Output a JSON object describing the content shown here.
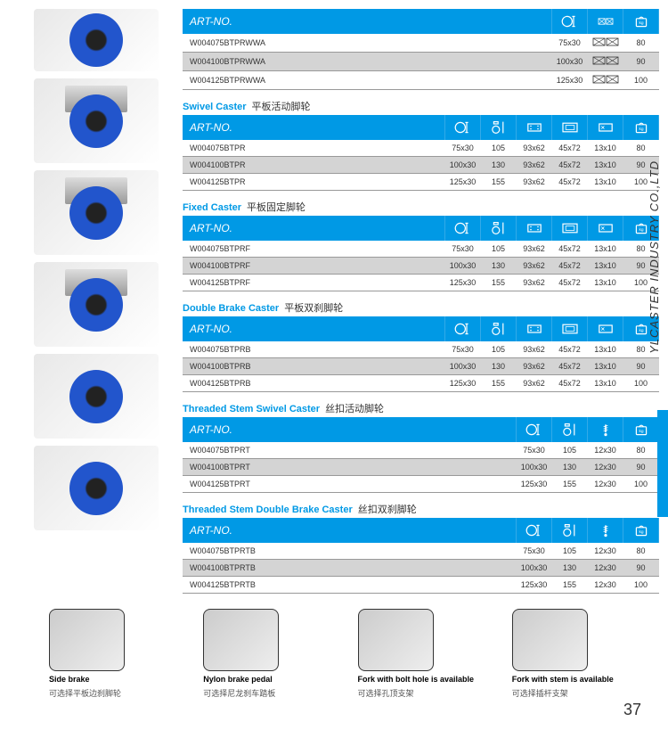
{
  "company": "YLCASTER INDUSTRY CO.,LTD",
  "pageNumber": "37",
  "colors": {
    "primary": "#0099e5",
    "altRow": "#d4d4d4",
    "text": "#333"
  },
  "artNoHeader": "ART-NO.",
  "sections": [
    {
      "title": "",
      "titleCn": "",
      "cols": 4,
      "rows": [
        {
          "art": "W004075BTPRWWA",
          "c1": "75x30",
          "c2": "",
          "c3": "80"
        },
        {
          "art": "W004100BTPRWWA",
          "c1": "100x30",
          "c2": "",
          "c3": "90"
        },
        {
          "art": "W004125BTPRWWA",
          "c1": "125x30",
          "c2": "",
          "c3": "100"
        }
      ]
    },
    {
      "title": "Swivel Caster",
      "titleCn": "平板活动脚轮",
      "cols": 7,
      "rows": [
        {
          "art": "W004075BTPR",
          "c1": "75x30",
          "c2": "105",
          "c3": "93x62",
          "c4": "45x72",
          "c5": "13x10",
          "c6": "80"
        },
        {
          "art": "W004100BTPR",
          "c1": "100x30",
          "c2": "130",
          "c3": "93x62",
          "c4": "45x72",
          "c5": "13x10",
          "c6": "90"
        },
        {
          "art": "W004125BTPR",
          "c1": "125x30",
          "c2": "155",
          "c3": "93x62",
          "c4": "45x72",
          "c5": "13x10",
          "c6": "100"
        }
      ]
    },
    {
      "title": "Fixed Caster",
      "titleCn": "平板固定脚轮",
      "cols": 7,
      "rows": [
        {
          "art": "W004075BTPRF",
          "c1": "75x30",
          "c2": "105",
          "c3": "93x62",
          "c4": "45x72",
          "c5": "13x10",
          "c6": "80"
        },
        {
          "art": "W004100BTPRF",
          "c1": "100x30",
          "c2": "130",
          "c3": "93x62",
          "c4": "45x72",
          "c5": "13x10",
          "c6": "90"
        },
        {
          "art": "W004125BTPRF",
          "c1": "125x30",
          "c2": "155",
          "c3": "93x62",
          "c4": "45x72",
          "c5": "13x10",
          "c6": "100"
        }
      ]
    },
    {
      "title": "Double Brake Caster",
      "titleCn": "平板双刹脚轮",
      "cols": 7,
      "rows": [
        {
          "art": "W004075BTPRB",
          "c1": "75x30",
          "c2": "105",
          "c3": "93x62",
          "c4": "45x72",
          "c5": "13x10",
          "c6": "80"
        },
        {
          "art": "W004100BTPRB",
          "c1": "100x30",
          "c2": "130",
          "c3": "93x62",
          "c4": "45x72",
          "c5": "13x10",
          "c6": "90"
        },
        {
          "art": "W004125BTPRB",
          "c1": "125x30",
          "c2": "155",
          "c3": "93x62",
          "c4": "45x72",
          "c5": "13x10",
          "c6": "100"
        }
      ]
    },
    {
      "title": "Threaded Stem Swivel Caster",
      "titleCn": "丝扣活动脚轮",
      "cols": 5,
      "rows": [
        {
          "art": "W004075BTPRT",
          "c1": "75x30",
          "c2": "105",
          "c3": "12x30",
          "c4": "80"
        },
        {
          "art": "W004100BTPRT",
          "c1": "100x30",
          "c2": "130",
          "c3": "12x30",
          "c4": "90"
        },
        {
          "art": "W004125BTPRT",
          "c1": "125x30",
          "c2": "155",
          "c3": "12x30",
          "c4": "100"
        }
      ]
    },
    {
      "title": "Threaded Stem Double Brake Caster",
      "titleCn": "丝扣双刹脚轮",
      "cols": 5,
      "rows": [
        {
          "art": "W004075BTPRTB",
          "c1": "75x30",
          "c2": "105",
          "c3": "12x30",
          "c4": "80"
        },
        {
          "art": "W004100BTPRTB",
          "c1": "100x30",
          "c2": "130",
          "c3": "12x30",
          "c4": "90"
        },
        {
          "art": "W004125BTPRTB",
          "c1": "125x30",
          "c2": "155",
          "c3": "12x30",
          "c4": "100"
        }
      ]
    }
  ],
  "bottomItems": [
    {
      "title": "Side brake",
      "cn": "可选择平板边刹脚轮"
    },
    {
      "title": "Nylon brake pedal",
      "cn": "可选择尼龙刹车踏板"
    },
    {
      "title": "Fork with bolt hole is available",
      "cn": "可选择孔顶支架"
    },
    {
      "title": "Fork with stem is available",
      "cn": "可选择插杆支架"
    }
  ]
}
